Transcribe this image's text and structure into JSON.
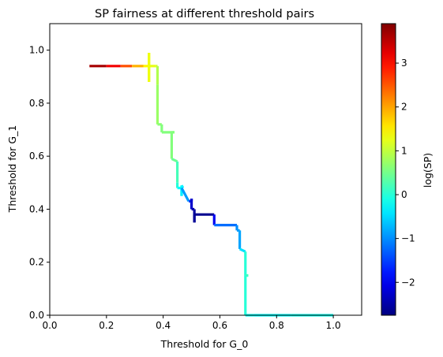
{
  "chart_data": {
    "type": "line",
    "title": "SP fairness at different threshold pairs",
    "xlabel": "Threshold for G_0",
    "ylabel": "Threshold for G_1",
    "xlim": [
      0.0,
      1.1
    ],
    "ylim": [
      0.0,
      1.1
    ],
    "xticks": [
      "0.0",
      "0.2",
      "0.4",
      "0.6",
      "0.8",
      "1.0"
    ],
    "yticks": [
      "0.0",
      "0.2",
      "0.4",
      "0.6",
      "0.8",
      "1.0"
    ],
    "grid": false,
    "colorbar": {
      "label": "log(SP)",
      "colormap": "jet",
      "range": [
        -2.75,
        3.9
      ],
      "ticks": [
        "−2",
        "−1",
        "0",
        "1",
        "2",
        "3"
      ],
      "tick_values": [
        -2,
        -1,
        0,
        1,
        2,
        3
      ]
    },
    "series": [
      {
        "points": [
          {
            "x": 0.14,
            "y": 0.94,
            "c": 3.9
          },
          {
            "x": 0.2,
            "y": 0.94,
            "c": 3.4
          },
          {
            "x": 0.25,
            "y": 0.94,
            "c": 2.9
          },
          {
            "x": 0.29,
            "y": 0.94,
            "c": 2.2
          },
          {
            "x": 0.33,
            "y": 0.94,
            "c": 1.6
          },
          {
            "x": 0.35,
            "y": 0.94,
            "c": 1.3
          },
          {
            "x": 0.35,
            "y": 0.99,
            "c": 1.3
          },
          {
            "x": 0.35,
            "y": 0.88,
            "c": 1.3
          },
          {
            "x": 0.35,
            "y": 0.94,
            "c": 1.3
          },
          {
            "x": 0.375,
            "y": 0.94,
            "c": 1.2
          },
          {
            "x": 0.38,
            "y": 0.94,
            "c": 1.0
          },
          {
            "x": 0.38,
            "y": 0.87,
            "c": 0.8
          },
          {
            "x": 0.38,
            "y": 0.72,
            "c": 0.7
          },
          {
            "x": 0.395,
            "y": 0.72,
            "c": 0.6
          },
          {
            "x": 0.395,
            "y": 0.69,
            "c": 0.6
          },
          {
            "x": 0.44,
            "y": 0.69,
            "c": 0.6
          },
          {
            "x": 0.43,
            "y": 0.69,
            "c": 0.6
          },
          {
            "x": 0.43,
            "y": 0.59,
            "c": 0.6
          },
          {
            "x": 0.45,
            "y": 0.58,
            "c": 0.3
          },
          {
            "x": 0.45,
            "y": 0.5,
            "c": 0.1
          },
          {
            "x": 0.45,
            "y": 0.48,
            "c": -0.1
          },
          {
            "x": 0.47,
            "y": 0.48,
            "c": -0.4
          },
          {
            "x": 0.465,
            "y": 0.49,
            "c": -0.3
          },
          {
            "x": 0.465,
            "y": 0.45,
            "c": -0.3
          },
          {
            "x": 0.465,
            "y": 0.48,
            "c": -0.4
          },
          {
            "x": 0.49,
            "y": 0.43,
            "c": -1.4
          },
          {
            "x": 0.5,
            "y": 0.43,
            "c": -1.6
          },
          {
            "x": 0.5,
            "y": 0.44,
            "c": -2.2
          },
          {
            "x": 0.5,
            "y": 0.4,
            "c": -2.3
          },
          {
            "x": 0.51,
            "y": 0.4,
            "c": -2.5
          },
          {
            "x": 0.51,
            "y": 0.35,
            "c": -2.6
          },
          {
            "x": 0.51,
            "y": 0.38,
            "c": -2.6
          },
          {
            "x": 0.58,
            "y": 0.38,
            "c": -2.7
          },
          {
            "x": 0.58,
            "y": 0.34,
            "c": -1.3
          },
          {
            "x": 0.66,
            "y": 0.34,
            "c": -1.1
          },
          {
            "x": 0.66,
            "y": 0.32,
            "c": -0.9
          },
          {
            "x": 0.67,
            "y": 0.32,
            "c": -0.9
          },
          {
            "x": 0.67,
            "y": 0.25,
            "c": -0.8
          },
          {
            "x": 0.69,
            "y": 0.24,
            "c": -0.1
          },
          {
            "x": 0.69,
            "y": 0.15,
            "c": 0.1
          },
          {
            "x": 0.7,
            "y": 0.15,
            "c": 0.2
          },
          {
            "x": 0.69,
            "y": 0.15,
            "c": 0.1
          },
          {
            "x": 0.69,
            "y": 0.0,
            "c": -0.1
          },
          {
            "x": 0.72,
            "y": 0.0,
            "c": -0.3
          },
          {
            "x": 0.85,
            "y": 0.0,
            "c": -0.2
          },
          {
            "x": 1.0,
            "y": 0.0,
            "c": -0.1
          }
        ]
      }
    ]
  }
}
